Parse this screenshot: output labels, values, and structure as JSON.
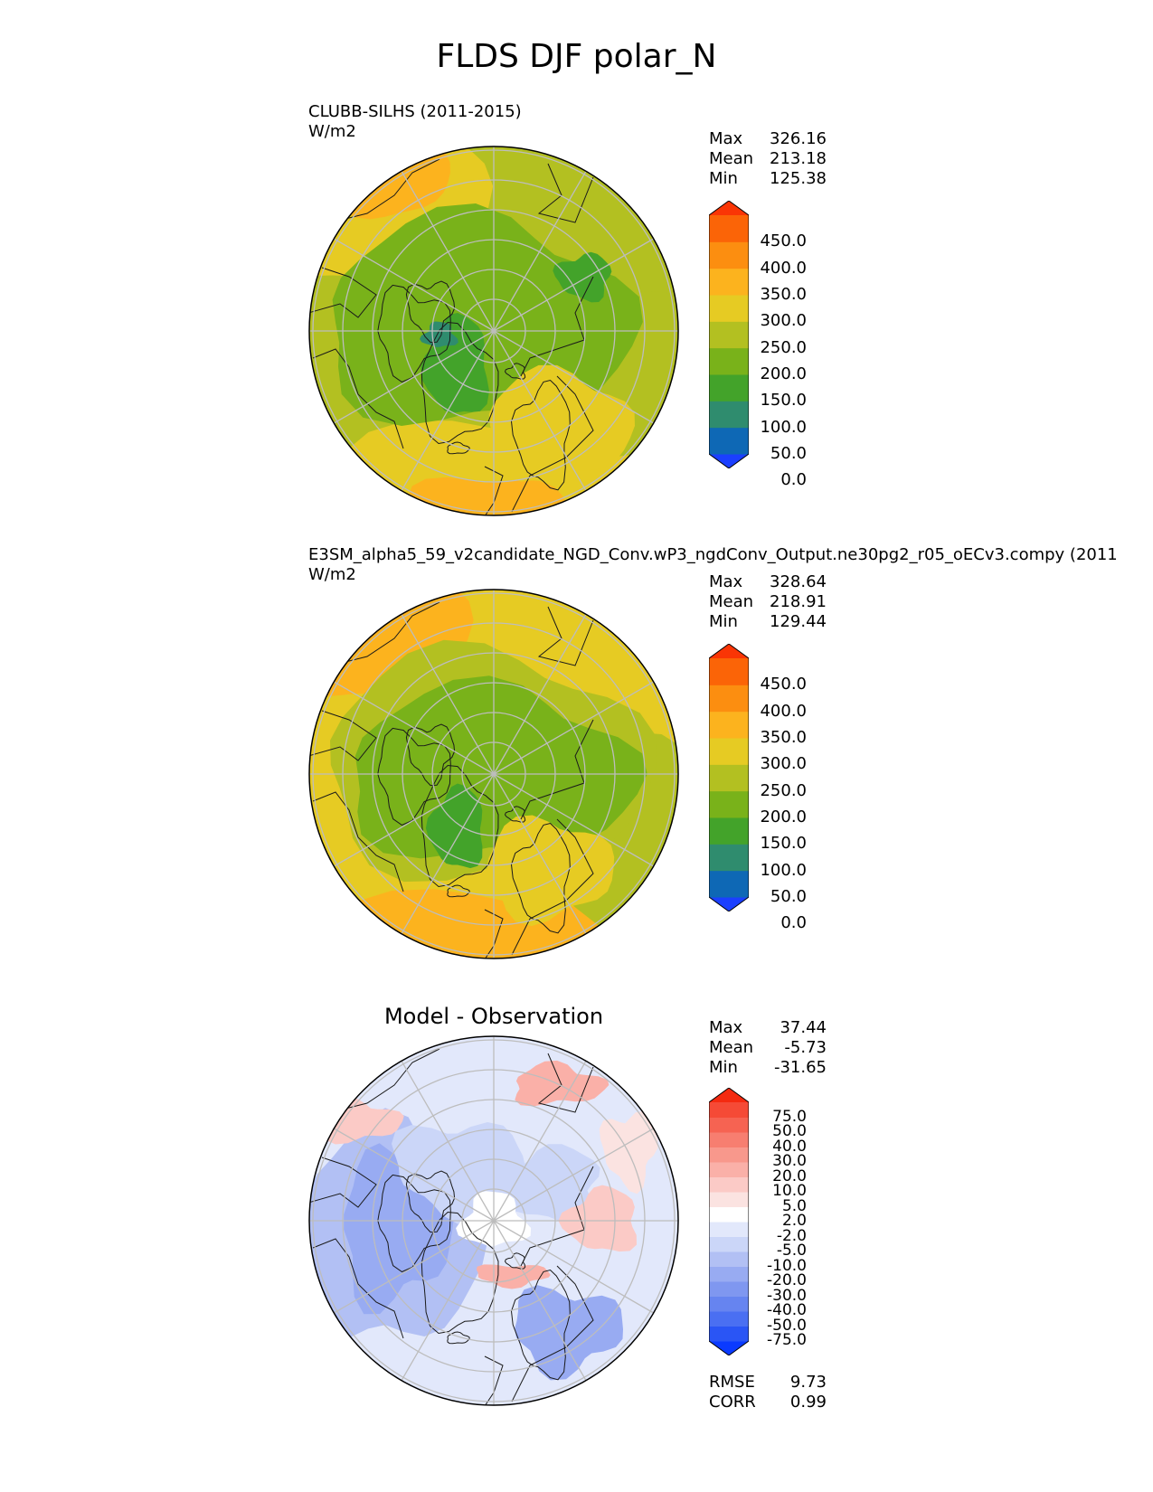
{
  "title": "FLDS DJF polar_N",
  "panels": [
    {
      "title": "CLUBB-SILHS (2011-2015)",
      "units": "W/m2",
      "stats": [
        {
          "label": "Max",
          "value": "326.16"
        },
        {
          "label": "Mean",
          "value": "213.18"
        },
        {
          "label": "Min",
          "value": "125.38"
        }
      ],
      "colorbar": {
        "ticks": [
          "450.0",
          "400.0",
          "350.0",
          "300.0",
          "250.0",
          "200.0",
          "150.0",
          "100.0",
          "50.0",
          "0.0"
        ],
        "colors": [
          "#1b3fff",
          "#0e68b5",
          "#2f8c6e",
          "#43a32a",
          "#79b21a",
          "#b3c021",
          "#e6cb23",
          "#fcb31e",
          "#fc8e10",
          "#fb6407",
          "#fa3505"
        ]
      }
    },
    {
      "title": "E3SM_alpha5_59_v2candidate_NGD_Conv.wP3_ngdConv_Output.ne30pg2_r05_oECv3.compy (2011",
      "units": "W/m2",
      "stats": [
        {
          "label": "Max",
          "value": "328.64"
        },
        {
          "label": "Mean",
          "value": "218.91"
        },
        {
          "label": "Min",
          "value": "129.44"
        }
      ],
      "colorbar": {
        "ticks": [
          "450.0",
          "400.0",
          "350.0",
          "300.0",
          "250.0",
          "200.0",
          "150.0",
          "100.0",
          "50.0",
          "0.0"
        ],
        "colors": [
          "#1b3fff",
          "#0e68b5",
          "#2f8c6e",
          "#43a32a",
          "#79b21a",
          "#b3c021",
          "#e6cb23",
          "#fcb31e",
          "#fc8e10",
          "#fb6407",
          "#fa3505"
        ]
      }
    },
    {
      "subtitle": "Model - Observation",
      "stats": [
        {
          "label": "Max",
          "value": "37.44"
        },
        {
          "label": "Mean",
          "value": "-5.73"
        },
        {
          "label": "Min",
          "value": "-31.65"
        }
      ],
      "colorbar": {
        "ticks": [
          "75.0",
          "50.0",
          "40.0",
          "30.0",
          "20.0",
          "10.0",
          "5.0",
          "2.0",
          "-2.0",
          "-5.0",
          "-10.0",
          "-20.0",
          "-30.0",
          "-40.0",
          "-50.0",
          "-75.0"
        ],
        "colors": [
          "#0a3aff",
          "#2a55f5",
          "#4a6ff2",
          "#6684f0",
          "#7f97f0",
          "#98abf2",
          "#b2c0f4",
          "#cbd6f8",
          "#e2e8fb",
          "#ffffff",
          "#fbe3e1",
          "#fbcac6",
          "#fab0a8",
          "#f8988c",
          "#f77e70",
          "#f66352",
          "#f54a36",
          "#f42a10"
        ]
      },
      "errors": [
        {
          "label": "RMSE",
          "value": "9.73"
        },
        {
          "label": "CORR",
          "value": "0.99"
        }
      ]
    }
  ],
  "chart_data": [
    {
      "type": "heatmap",
      "projection": "north polar stereographic",
      "title": "CLUBB-SILHS (2011-2015)",
      "units": "W/m2",
      "levels": [
        0,
        50,
        100,
        150,
        200,
        250,
        300,
        350,
        400,
        450
      ],
      "max": 326.16,
      "mean": 213.18,
      "min": 125.38
    },
    {
      "type": "heatmap",
      "projection": "north polar stereographic",
      "title": "E3SM_alpha5_59_v2candidate_NGD_Conv.wP3_ngdConv_Output.ne30pg2_r05_oECv3.compy (2011",
      "units": "W/m2",
      "levels": [
        0,
        50,
        100,
        150,
        200,
        250,
        300,
        350,
        400,
        450
      ],
      "max": 328.64,
      "mean": 218.91,
      "min": 129.44
    },
    {
      "type": "heatmap",
      "projection": "north polar stereographic",
      "title": "Model - Observation",
      "levels": [
        -75,
        -50,
        -40,
        -30,
        -20,
        -10,
        -5,
        -2,
        2,
        5,
        10,
        20,
        30,
        40,
        50,
        75
      ],
      "max": 37.44,
      "mean": -5.73,
      "min": -31.65,
      "rmse": 9.73,
      "corr": 0.99
    }
  ]
}
